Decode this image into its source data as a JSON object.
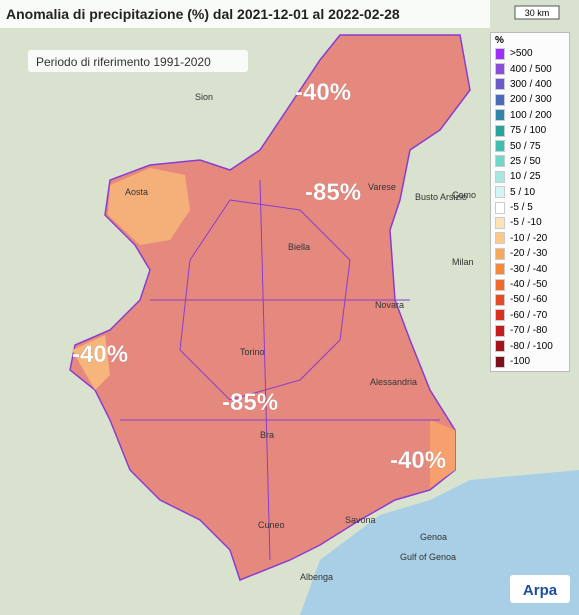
{
  "header": {
    "title": "Anomalia di precipitazione (%) dal 2021-12-01 al 2022-02-28",
    "subtitle": "Periodo di riferimento 1991-2020"
  },
  "scale": "30 km",
  "legend": {
    "title": "%",
    "items": [
      {
        "label": ">500",
        "color": "#9b30ff"
      },
      {
        "label": "400 / 500",
        "color": "#8a4fd8"
      },
      {
        "label": "300 / 400",
        "color": "#6a5bc8"
      },
      {
        "label": "200 / 300",
        "color": "#4a6cb8"
      },
      {
        "label": "100 / 200",
        "color": "#2f86a8"
      },
      {
        "label": "75 / 100",
        "color": "#2aa39a"
      },
      {
        "label": "50 / 75",
        "color": "#3dbfae"
      },
      {
        "label": "25 / 50",
        "color": "#6fd6c8"
      },
      {
        "label": "10 / 25",
        "color": "#a6e8e0"
      },
      {
        "label": "5 / 10",
        "color": "#d4f4f2"
      },
      {
        "label": "-5 / 5",
        "color": "#ffffff"
      },
      {
        "label": "-5 / -10",
        "color": "#fde2b8"
      },
      {
        "label": "-10 / -20",
        "color": "#fbc98a"
      },
      {
        "label": "-20 / -30",
        "color": "#f8a85a"
      },
      {
        "label": "-30 / -40",
        "color": "#f5883a"
      },
      {
        "label": "-40 / -50",
        "color": "#ef6a2c"
      },
      {
        "label": "-50 / -60",
        "color": "#e64b26"
      },
      {
        "label": "-60 / -70",
        "color": "#d93020"
      },
      {
        "label": "-70 / -80",
        "color": "#c21e1e"
      },
      {
        "label": "-80 / -100",
        "color": "#a5151c"
      },
      {
        "label": "-100",
        "color": "#7f0f18"
      }
    ]
  },
  "annotations": [
    "-40%",
    "-85%",
    "-40%",
    "-85%",
    "-40%"
  ],
  "places": [
    "Sion",
    "Biella",
    "Novara",
    "Milan",
    "Varese",
    "Como",
    "Busto Arsizio",
    "Torino",
    "Alessandria",
    "Bra",
    "Cuneo",
    "Savona",
    "Genoa",
    "Gulf of Genoa",
    "Albenga",
    "Aosta"
  ],
  "logo": "Arpa"
}
